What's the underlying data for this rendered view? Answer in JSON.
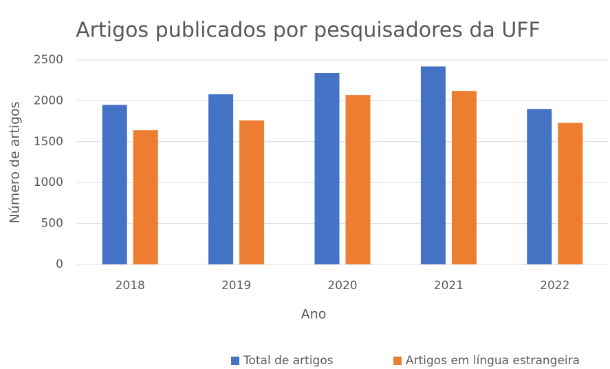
{
  "chart_data": {
    "type": "bar",
    "title": "Artigos publicados por pesquisadores da UFF",
    "x_label": "Ano",
    "y_label": "Número de artigos",
    "categories": [
      "2018",
      "2019",
      "2020",
      "2021",
      "2022"
    ],
    "series": [
      {
        "name": "Total de artigos",
        "color": "#4472c4",
        "values": [
          1950,
          2080,
          2340,
          2420,
          1900
        ]
      },
      {
        "name": "Artigos em língua estrangeira",
        "color": "#ed7d31",
        "values": [
          1640,
          1760,
          2070,
          2120,
          1730
        ]
      }
    ],
    "ylim": [
      0,
      2500
    ],
    "yticks": [
      0,
      500,
      1000,
      1500,
      2000,
      2500
    ],
    "grid": true,
    "legend": "bottom"
  }
}
